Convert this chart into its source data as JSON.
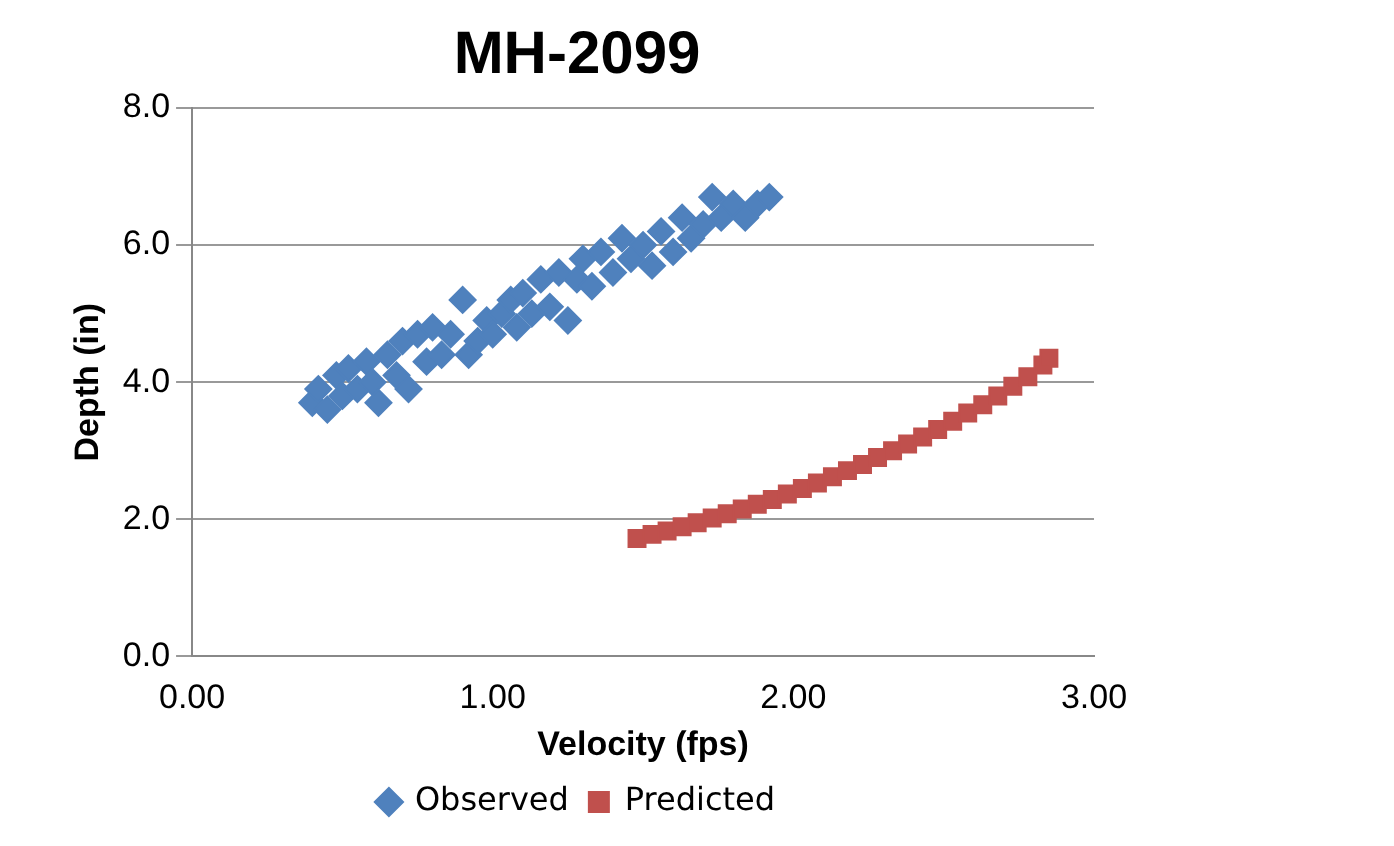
{
  "chart_data": {
    "type": "scatter",
    "title": "MH-2099",
    "xlabel": "Velocity (fps)",
    "ylabel": "Depth (in)",
    "xlim": [
      0,
      3
    ],
    "xticks": [
      {
        "value": 0,
        "label": "0.00"
      },
      {
        "value": 1,
        "label": "1.00"
      },
      {
        "value": 2,
        "label": "2.00"
      },
      {
        "value": 3,
        "label": "3.00"
      }
    ],
    "ylim": [
      0,
      8
    ],
    "yticks": [
      {
        "value": 0,
        "label": "0.0"
      },
      {
        "value": 2,
        "label": "2.0"
      },
      {
        "value": 4,
        "label": "4.0"
      },
      {
        "value": 6,
        "label": "6.0"
      },
      {
        "value": 8,
        "label": "8.0"
      }
    ],
    "grid": "y",
    "legend": "bottom",
    "series": [
      {
        "name": "Observed",
        "color": "#4f81bd",
        "marker": "diamond",
        "x": [
          0.4,
          0.42,
          0.45,
          0.48,
          0.5,
          0.52,
          0.55,
          0.58,
          0.6,
          0.62,
          0.65,
          0.68,
          0.7,
          0.72,
          0.75,
          0.78,
          0.8,
          0.83,
          0.86,
          0.9,
          0.92,
          0.95,
          0.98,
          1.0,
          1.03,
          1.06,
          1.08,
          1.1,
          1.13,
          1.16,
          1.19,
          1.22,
          1.25,
          1.28,
          1.3,
          1.33,
          1.36,
          1.4,
          1.43,
          1.46,
          1.5,
          1.53,
          1.56,
          1.6,
          1.63,
          1.66,
          1.7,
          1.73,
          1.76,
          1.8,
          1.84,
          1.88,
          1.92
        ],
        "values": [
          3.7,
          3.9,
          3.6,
          4.1,
          3.8,
          4.2,
          3.9,
          4.3,
          4.0,
          3.7,
          4.4,
          4.1,
          4.6,
          3.9,
          4.7,
          4.3,
          4.8,
          4.4,
          4.7,
          5.2,
          4.4,
          4.6,
          4.9,
          4.7,
          5.0,
          5.2,
          4.8,
          5.3,
          5.0,
          5.5,
          5.1,
          5.6,
          4.9,
          5.5,
          5.8,
          5.4,
          5.9,
          5.6,
          6.1,
          5.8,
          6.0,
          5.7,
          6.2,
          5.9,
          6.4,
          6.1,
          6.3,
          6.7,
          6.4,
          6.6,
          6.4,
          6.6,
          6.7
        ]
      },
      {
        "name": "Predicted",
        "color": "#c0504d",
        "marker": "square",
        "x": [
          1.48,
          1.53,
          1.58,
          1.63,
          1.68,
          1.73,
          1.78,
          1.83,
          1.88,
          1.93,
          1.98,
          2.03,
          2.08,
          2.13,
          2.18,
          2.23,
          2.28,
          2.33,
          2.38,
          2.43,
          2.48,
          2.53,
          2.58,
          2.63,
          2.68,
          2.73,
          2.78,
          2.83,
          2.85
        ],
        "values": [
          1.72,
          1.78,
          1.83,
          1.89,
          1.95,
          2.02,
          2.08,
          2.15,
          2.22,
          2.29,
          2.37,
          2.45,
          2.53,
          2.62,
          2.71,
          2.8,
          2.9,
          3.0,
          3.1,
          3.2,
          3.31,
          3.43,
          3.55,
          3.67,
          3.8,
          3.94,
          4.08,
          4.25,
          4.35
        ]
      }
    ]
  }
}
